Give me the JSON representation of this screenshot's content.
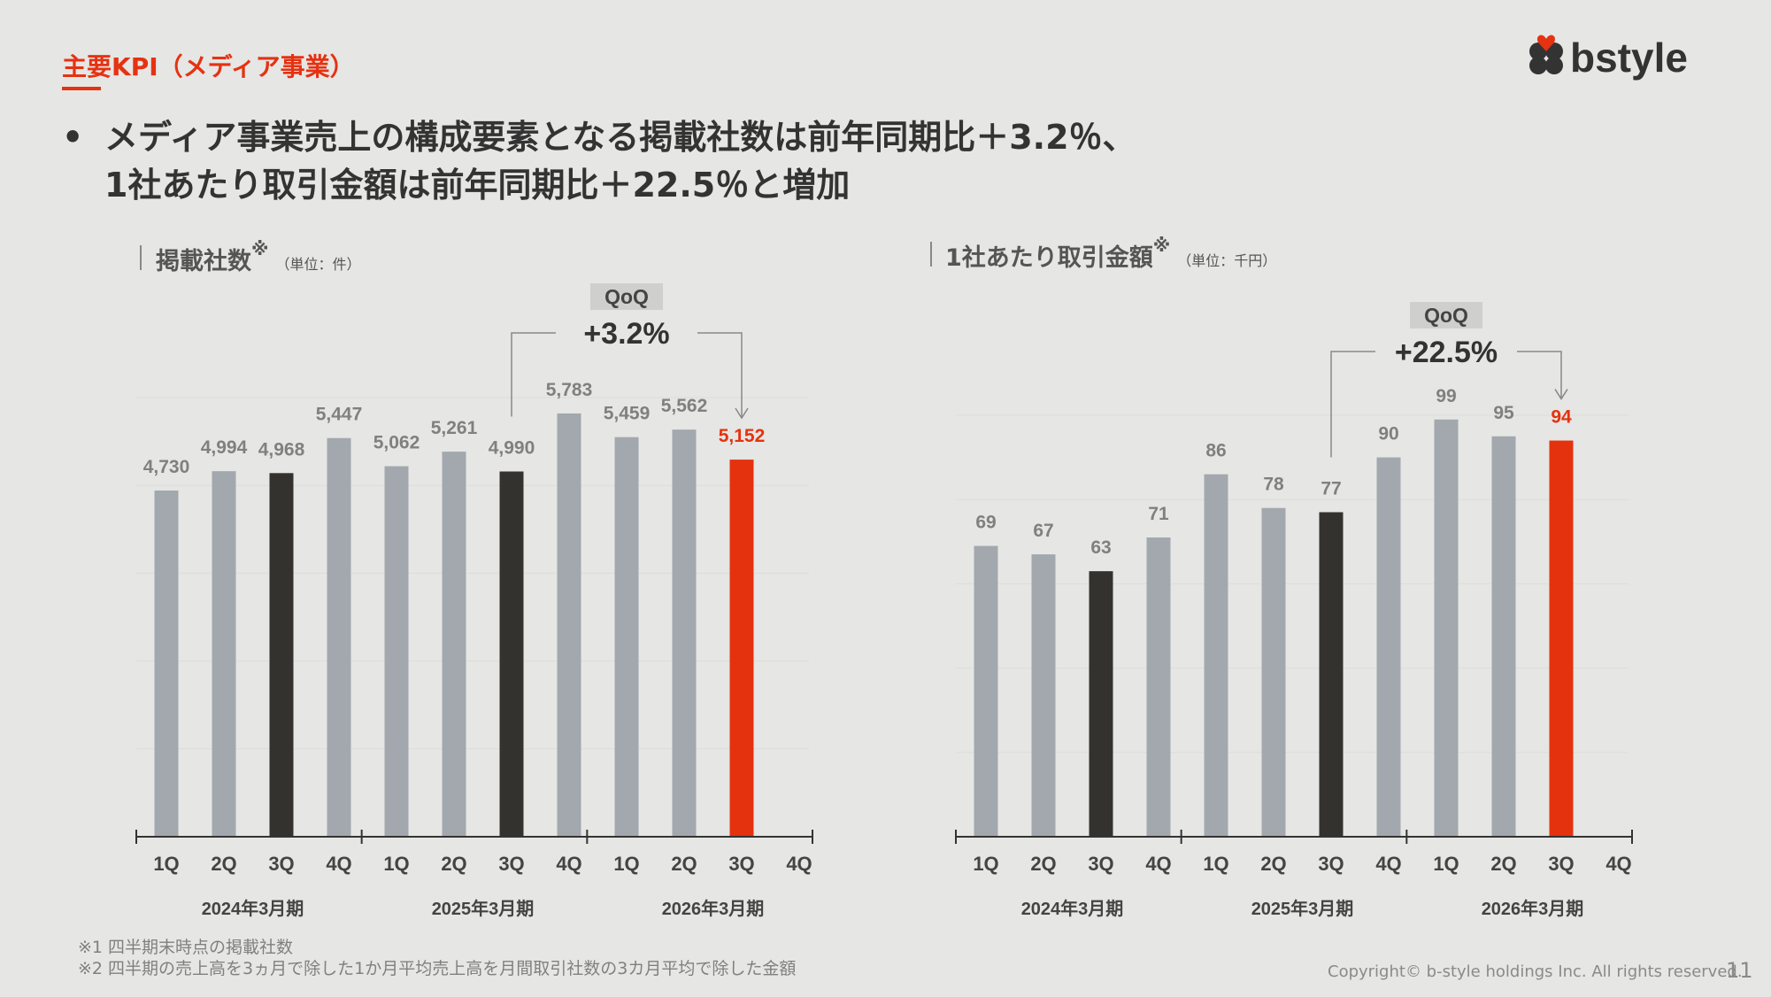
{
  "header": {
    "section_title": "主要KPI（メディア事業）",
    "logo_text": "bstyle"
  },
  "headline": {
    "bullet": "•",
    "line1": "メディア事業売上の構成要素となる掲載社数は前年同期比＋3.2％、",
    "line2": "1社あたり取引金額は前年同期比＋22.5％と増加"
  },
  "colors": {
    "accent": "#e53212",
    "bar_default": "#a2a8ae",
    "bar_q3": "#33322f",
    "bar_current": "#e5320e",
    "label_default": "#808080",
    "background": "#e6e6e4"
  },
  "chart_data": [
    {
      "type": "bar",
      "title": "掲載社数",
      "title_sup": "※",
      "unit": "（単位：件）",
      "categories": [
        "1Q",
        "2Q",
        "3Q",
        "4Q",
        "1Q",
        "2Q",
        "3Q",
        "4Q",
        "1Q",
        "2Q",
        "3Q",
        "4Q"
      ],
      "groups": [
        "2024年3月期",
        "2025年3月期",
        "2026年3月期"
      ],
      "values": [
        4730,
        4994,
        4968,
        5447,
        5062,
        5261,
        4990,
        5783,
        5459,
        5562,
        5152,
        null
      ],
      "value_labels": [
        "4,730",
        "4,994",
        "4,968",
        "5,447",
        "5,062",
        "5,261",
        "4,990",
        "5,783",
        "5,459",
        "5,562",
        "5,152",
        ""
      ],
      "bar_styles": [
        "default",
        "default",
        "q3",
        "default",
        "default",
        "default",
        "q3",
        "default",
        "default",
        "default",
        "current",
        ""
      ],
      "ylim": [
        0,
        6000
      ],
      "grid": true,
      "annotation": {
        "label": "QoQ",
        "value": "+3.2%",
        "from_index": 6,
        "to_index": 10
      }
    },
    {
      "type": "bar",
      "title": "1社あたり取引金額",
      "title_sup": "※",
      "unit": "（単位：千円）",
      "categories": [
        "1Q",
        "2Q",
        "3Q",
        "4Q",
        "1Q",
        "2Q",
        "3Q",
        "4Q",
        "1Q",
        "2Q",
        "3Q",
        "4Q"
      ],
      "groups": [
        "2024年3月期",
        "2025年3月期",
        "2026年3月期"
      ],
      "values": [
        69,
        67,
        63,
        71,
        86,
        78,
        77,
        90,
        99,
        95,
        94,
        null
      ],
      "value_labels": [
        "69",
        "67",
        "63",
        "71",
        "86",
        "78",
        "77",
        "90",
        "99",
        "95",
        "94",
        ""
      ],
      "bar_styles": [
        "default",
        "default",
        "q3",
        "default",
        "default",
        "default",
        "q3",
        "default",
        "default",
        "default",
        "current",
        ""
      ],
      "ylim": [
        0,
        100
      ],
      "grid": true,
      "annotation": {
        "label": "QoQ",
        "value": "+22.5%",
        "from_index": 6,
        "to_index": 10
      }
    }
  ],
  "footnotes": [
    "※1 四半期末時点の掲載社数",
    "※2 四半期の売上高を3ヵ月で除した1か月平均売上高を月間取引社数の3カ月平均で除した金額"
  ],
  "footer": {
    "copyright": "Copyright© b-style holdings Inc. All rights reserved.",
    "page_number": "11"
  }
}
